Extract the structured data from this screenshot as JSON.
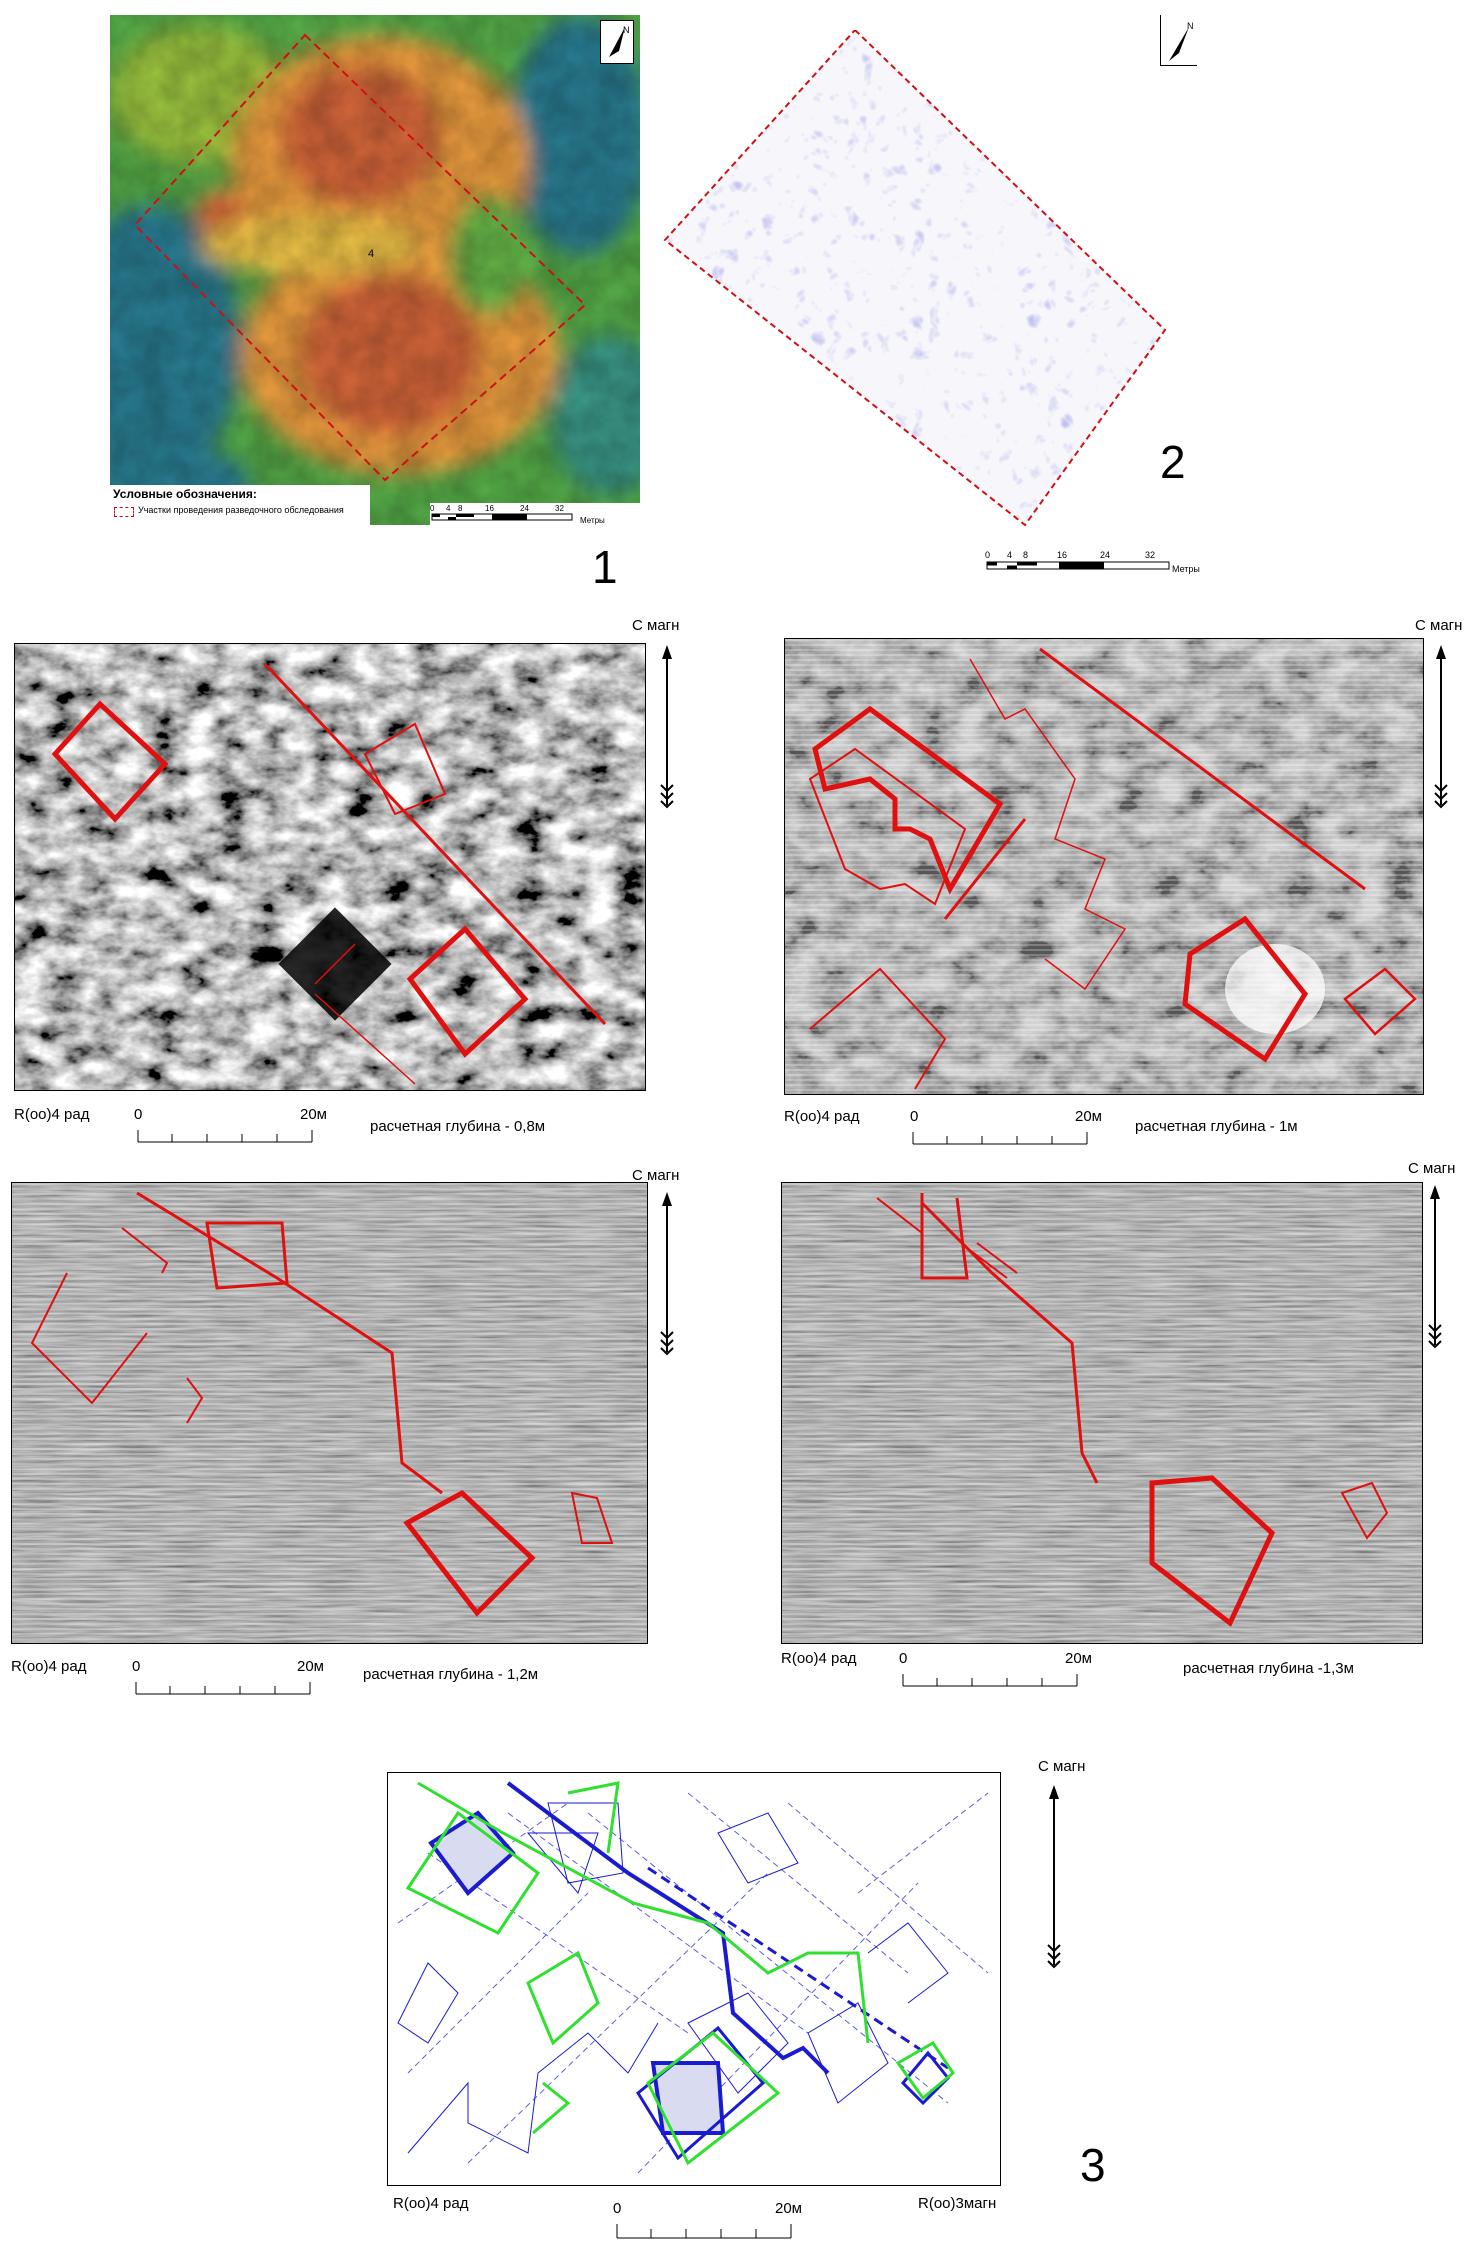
{
  "fig1": {
    "legend_title": "Условные обозначения:",
    "legend_item": "Участки проведения разведочного обследования",
    "scale_ticks": [
      "0",
      "4",
      "8",
      "16",
      "24",
      "32"
    ],
    "scale_unit": "Метры",
    "north": "N",
    "site_label": "4",
    "number": "1"
  },
  "fig2": {
    "scale_ticks": [
      "0",
      "4",
      "8",
      "16",
      "24",
      "32"
    ],
    "scale_unit": "Метры",
    "north": "N",
    "number": "2"
  },
  "panels": [
    {
      "north_label": "С магн",
      "param_label": "R(oo)4 рад",
      "scale_zero": "0",
      "scale_end": "20м",
      "depth_label": "расчетная глубина - 0,8м"
    },
    {
      "north_label": "С магн",
      "param_label": "R(oo)4 рад",
      "scale_zero": "0",
      "scale_end": "20м",
      "depth_label": "расчетная глубина - 1м"
    },
    {
      "north_label": "С магн",
      "param_label": "R(oo)4 рад",
      "scale_zero": "0",
      "scale_end": "20м",
      "depth_label": "расчетная глубина - 1,2м"
    },
    {
      "north_label": "С магн",
      "param_label": "R(oo)4 рад",
      "scale_zero": "0",
      "scale_end": "20м",
      "depth_label": "расчетная глубина -1,3м"
    }
  ],
  "fig3": {
    "north_label": "С магн",
    "param_left": "R(oo)4 рад",
    "param_right": "R(oo)3магн",
    "scale_zero": "0",
    "scale_end": "20м",
    "number": "3"
  },
  "colors": {
    "contour_red": "#e01010",
    "blue": "#1a1ad0",
    "green": "#30e030",
    "heat_high": "#d4603a",
    "heat_mid": "#f2a43a",
    "heat_low": "#2a8a9a"
  }
}
